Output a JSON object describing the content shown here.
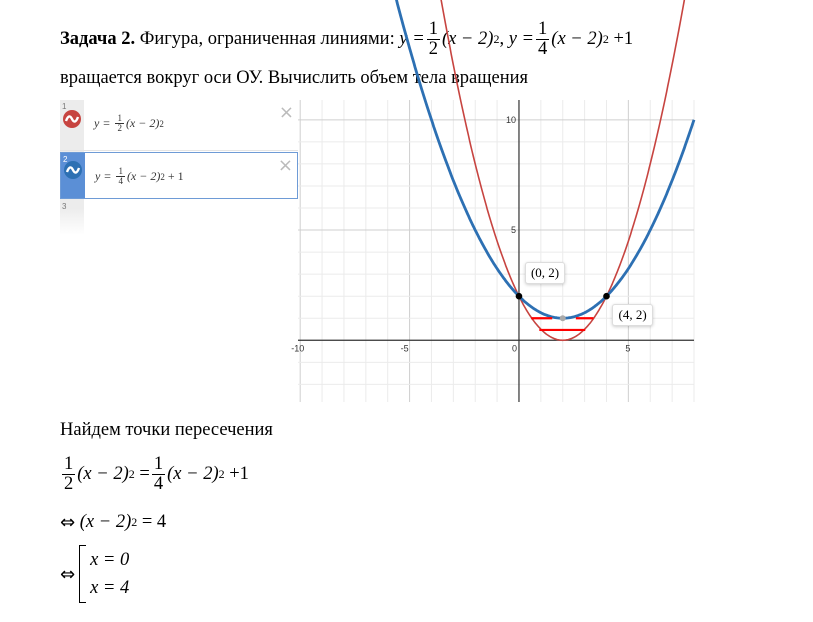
{
  "task": {
    "title_bold": "Задача 2.",
    "title_text": "Фигура, ограниченная линиями:",
    "eq1": {
      "lhs": "y =",
      "num": "1",
      "den": "2",
      "body": "(x − 2)",
      "exp": "2"
    },
    "sep": ",",
    "eq2": {
      "lhs": "y =",
      "num": "1",
      "den": "4",
      "body": "(x − 2)",
      "exp": "2",
      "tail": "+1"
    },
    "line2": "вращается вокруг оси ОУ. Вычислить объем тела вращения"
  },
  "desmos": {
    "expressions": [
      {
        "index": "1",
        "lhs": "y =",
        "num": "1",
        "den": "2",
        "body": "(x − 2)",
        "exp": "2",
        "tail": "",
        "color": "#c74440"
      },
      {
        "index": "2",
        "lhs": "y =",
        "num": "1",
        "den": "4",
        "body": "(x − 2)",
        "exp": "2",
        "tail": "+ 1",
        "color": "#2d70b3"
      },
      {
        "index": "3"
      }
    ],
    "close_icon": "×",
    "points": [
      {
        "x": 0,
        "y": 2,
        "label": "(0, 2)"
      },
      {
        "x": 4,
        "y": 2,
        "label": "(4, 2)"
      }
    ],
    "vertex": {
      "x": 2,
      "y": 1,
      "color": "#aaaaaa"
    },
    "xlim": [
      -10.1,
      8
    ],
    "ylim": [
      -2.8,
      10.9
    ],
    "x_ticks": [
      "-10",
      "-5",
      "0",
      "5"
    ],
    "y_ticks": [
      "5",
      "10"
    ],
    "hatch_color": "#ff0000",
    "hatch_lines": [
      {
        "y": 1,
        "x1": 0.56,
        "x2": 1.52
      },
      {
        "y": 1,
        "x1": 2.6,
        "x2": 3.4
      },
      {
        "y": 0.47,
        "x1": 0.93,
        "x2": 3.03
      }
    ]
  },
  "solution": {
    "heading": "Найдем точки пересечения",
    "step1": {
      "num1": "1",
      "den1": "2",
      "body1": "(x − 2)",
      "exp1": "2",
      "eq": "=",
      "num2": "1",
      "den2": "4",
      "body2": "(x − 2)",
      "exp2": "2",
      "tail": "+1"
    },
    "step2": {
      "arrow": "⇔",
      "body": "(x − 2)",
      "exp": "2",
      "rhs": "= 4"
    },
    "step3": {
      "arrow": "⇔",
      "case1": "x = 0",
      "case2": "x = 4"
    }
  }
}
